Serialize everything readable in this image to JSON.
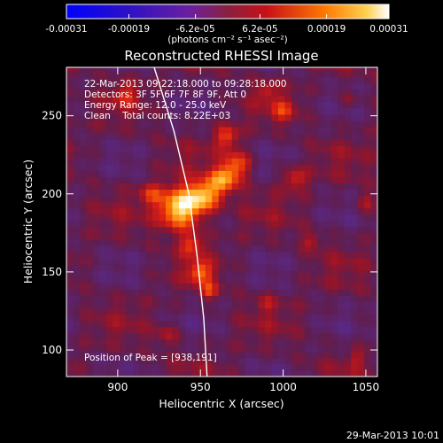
{
  "colorbar": {
    "tick_labels": [
      "-0.00031",
      "-0.00019",
      "-6.2e-05",
      "6.2e-05",
      "0.00019",
      "0.00031"
    ],
    "tick_values": [
      -0.00031,
      -0.00019,
      -6.2e-05,
      6.2e-05,
      0.00019,
      0.00031
    ],
    "range": [
      -0.00031,
      0.00031
    ],
    "unit_label": "(photons cm⁻² s⁻¹ asec⁻²)"
  },
  "chart_data": {
    "type": "heatmap",
    "title": "Reconstructed RHESSI Image",
    "xlabel": "Heliocentric X (arcsec)",
    "ylabel": "Heliocentric Y (arcsec)",
    "xlim": [
      869,
      1057
    ],
    "ylim": [
      83,
      281
    ],
    "x_ticks": [
      900,
      950,
      1000,
      1050
    ],
    "y_ticks": [
      100,
      150,
      200,
      250
    ],
    "colormap": "purple-blue to red-yellow-white",
    "info_lines": [
      "22-Mar-2013 09:22:18.000 to 09:28:18.000",
      "Detectors: 3F 5F 6F 7F 8F 9F, Att 0",
      "Energy Range: 12.0 - 25.0 keV",
      "Clean    Total counts: 8.22E+03"
    ],
    "peak_label": "Position of Peak = [938,191]",
    "peak": [
      938,
      191
    ],
    "limb_curve": [
      [
        922,
        281
      ],
      [
        934,
        240
      ],
      [
        943,
        200
      ],
      [
        948,
        160
      ],
      [
        952,
        120
      ],
      [
        954,
        83
      ]
    ],
    "sources": [
      {
        "x": 938,
        "y": 191,
        "r": 9,
        "v": 0.00031
      },
      {
        "x": 952,
        "y": 199,
        "r": 7,
        "v": 0.00022
      },
      {
        "x": 964,
        "y": 209,
        "r": 6,
        "v": 0.00019
      },
      {
        "x": 972,
        "y": 219,
        "r": 6,
        "v": 0.00016
      },
      {
        "x": 966,
        "y": 237,
        "r": 5,
        "v": 0.00014
      },
      {
        "x": 945,
        "y": 168,
        "r": 5,
        "v": 0.00013
      },
      {
        "x": 950,
        "y": 150,
        "r": 5,
        "v": 0.00015
      },
      {
        "x": 955,
        "y": 138,
        "r": 4,
        "v": 0.00012
      },
      {
        "x": 920,
        "y": 200,
        "r": 5,
        "v": 0.0001
      },
      {
        "x": 1007,
        "y": 210,
        "r": 5,
        "v": 0.00012
      },
      {
        "x": 1017,
        "y": 170,
        "r": 4,
        "v": 8e-05
      },
      {
        "x": 1000,
        "y": 254,
        "r": 5,
        "v": 0.0001
      },
      {
        "x": 905,
        "y": 264,
        "r": 5,
        "v": 9e-05
      },
      {
        "x": 990,
        "y": 266,
        "r": 4,
        "v": 8e-05
      },
      {
        "x": 1050,
        "y": 195,
        "r": 4,
        "v": 8e-05
      },
      {
        "x": 1040,
        "y": 260,
        "r": 4,
        "v": 6e-05
      },
      {
        "x": 930,
        "y": 110,
        "r": 5,
        "v": 7e-05
      },
      {
        "x": 1045,
        "y": 95,
        "r": 4,
        "v": 6e-05
      },
      {
        "x": 990,
        "y": 130,
        "r": 4,
        "v": 6e-05
      }
    ]
  },
  "timestamp": "29-Mar-2013 10:01"
}
